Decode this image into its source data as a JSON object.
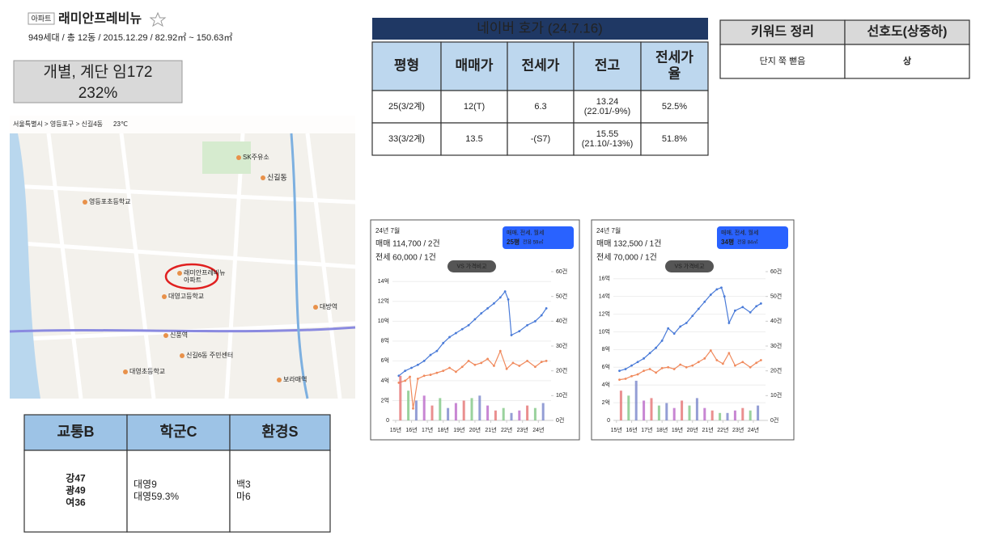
{
  "header": {
    "tag": "아파트",
    "title": "래미안프레비뉴",
    "subtitle": "949세대 / 총 12동 / 2015.12.29 / 82.92㎡ ~ 150.63㎡"
  },
  "note": [
    "개별, 계단 임172",
    "232%"
  ],
  "naver": {
    "title": "네이버 호가 (24.7.16)",
    "headers": [
      [
        "평형"
      ],
      [
        "매매가"
      ],
      [
        "전세가"
      ],
      [
        "전고"
      ],
      [
        "전세가",
        "율"
      ]
    ],
    "rows": [
      [
        [
          "25(3/2계)"
        ],
        [
          "12(T)"
        ],
        [
          "6.3"
        ],
        [
          "13.24",
          "(22.01/-9%)"
        ],
        [
          "52.5%"
        ]
      ],
      [
        [
          "33(3/2계)"
        ],
        [
          "13.5"
        ],
        [
          "-(S7)"
        ],
        [
          "15.55",
          "(21.10/-13%)"
        ],
        [
          "51.8%"
        ]
      ]
    ]
  },
  "keywords": {
    "headers": [
      "키워드 정리",
      "선호도(상중하)"
    ],
    "rows": [
      [
        "단지 쭉 뻗음",
        "상"
      ]
    ]
  },
  "scores": {
    "headers": [
      "교통B",
      "학군C",
      "환경S"
    ],
    "cells": [
      [
        "강47",
        "광49",
        "여36"
      ],
      [
        "대영9",
        "대영59.3%"
      ],
      [
        "백3",
        "마6"
      ]
    ]
  },
  "map": {
    "labels": [
      "서울특별시 > 영등포구 > 신길4동",
      "23℃",
      "래미안프레비뉴",
      "아파트",
      "대영고등학교",
      "대영초등학교",
      "신길동",
      "신풍역",
      "보라매역",
      "대방역",
      "SK주유소",
      "영등포초등학교",
      "신길6동 주민센터"
    ]
  },
  "charts": [
    {
      "type": "line",
      "month": "24년 7월",
      "sale": "매매 114,700 / 2건",
      "lease": "전세 60,000 / 1건",
      "badge": "매매, 전세, 월세",
      "size": "25평",
      "area": "전용 59㎡",
      "compare": "VS 가격비교",
      "xlim": [
        2014.8,
        2024.8
      ],
      "xticks": [
        {
          "value": 2015,
          "label": "15년"
        },
        {
          "value": 2016,
          "label": "16년"
        },
        {
          "value": 2017,
          "label": "17년"
        },
        {
          "value": 2018,
          "label": "18년"
        },
        {
          "value": 2019,
          "label": "19년"
        },
        {
          "value": 2020,
          "label": "20년"
        },
        {
          "value": 2021,
          "label": "21년"
        },
        {
          "value": 2022,
          "label": "22년"
        },
        {
          "value": 2023,
          "label": "23년"
        },
        {
          "value": 2024,
          "label": "24년"
        }
      ],
      "ylim": [
        0,
        15
      ],
      "yticks": [
        0,
        {
          "value": 2,
          "label": "2억"
        },
        {
          "value": 4,
          "label": "4억"
        },
        {
          "value": 6,
          "label": "6억"
        },
        {
          "value": 8,
          "label": "8억"
        },
        {
          "value": 10,
          "label": "10억"
        },
        {
          "value": 12,
          "label": "12억"
        },
        {
          "value": 14,
          "label": "14억"
        }
      ],
      "y2lim": [
        0,
        60
      ],
      "y2ticks": [
        {
          "value": 0,
          "label": "0건"
        },
        {
          "value": 10,
          "label": "10건"
        },
        {
          "value": 20,
          "label": "20건"
        },
        {
          "value": 30,
          "label": "30건"
        },
        {
          "value": 40,
          "label": "40건"
        },
        {
          "value": 50,
          "label": "50건"
        },
        {
          "value": 60,
          "label": "60건"
        }
      ],
      "series": [
        {
          "color": "#4a7bd8",
          "x": [
            2015.2,
            2015.6,
            2016.0,
            2016.4,
            2016.8,
            2017.2,
            2017.6,
            2018.0,
            2018.4,
            2018.8,
            2019.2,
            2019.6,
            2020.0,
            2020.4,
            2020.8,
            2021.2,
            2021.6,
            2021.9,
            2022.1,
            2022.3,
            2022.8,
            2023.3,
            2023.8,
            2024.2,
            2024.5
          ],
          "values": [
            4.5,
            5.0,
            5.3,
            5.6,
            6.0,
            6.6,
            7.0,
            7.8,
            8.4,
            8.8,
            9.2,
            9.6,
            10.2,
            10.8,
            11.3,
            11.8,
            12.4,
            13.0,
            12.2,
            8.6,
            9.0,
            9.6,
            10.0,
            10.6,
            11.3
          ]
        },
        {
          "color": "#f08a5d",
          "x": [
            2015.2,
            2015.6,
            2015.9,
            2016.1,
            2016.4,
            2016.8,
            2017.2,
            2017.6,
            2018.0,
            2018.4,
            2018.8,
            2019.2,
            2019.6,
            2020.0,
            2020.4,
            2020.8,
            2021.2,
            2021.6,
            2022.0,
            2022.4,
            2022.8,
            2023.3,
            2023.8,
            2024.2,
            2024.5
          ],
          "values": [
            3.8,
            4.0,
            4.4,
            1.2,
            4.2,
            4.5,
            4.6,
            4.8,
            5.0,
            5.3,
            4.9,
            5.4,
            6.0,
            5.6,
            5.8,
            6.2,
            5.5,
            7.0,
            5.2,
            5.8,
            5.5,
            6.0,
            5.4,
            5.9,
            6.0
          ]
        },
        {
          "type": "bar",
          "axis": "y2",
          "colors": [
            "#e57373",
            "#81c784",
            "#7986cb",
            "#ba68c8"
          ],
          "x": [
            2015.3,
            2015.8,
            2016.3,
            2016.8,
            2017.3,
            2017.8,
            2018.3,
            2018.8,
            2019.3,
            2019.8,
            2020.3,
            2020.8,
            2021.3,
            2021.8,
            2022.3,
            2022.8,
            2023.3,
            2023.8,
            2024.3
          ],
          "values": [
            18,
            12,
            8,
            10,
            6,
            9,
            5,
            7,
            8,
            9,
            10,
            6,
            4,
            5,
            3,
            4,
            6,
            5,
            7
          ]
        }
      ]
    },
    {
      "type": "line",
      "month": "24년 7월",
      "sale": "매매 132,500 / 1건",
      "lease": "전세 70,000 / 1건",
      "badge": "매매, 전세, 월세",
      "size": "34평",
      "area": "전용 84㎡",
      "compare": "VS 가격비교",
      "xlim": [
        2014.8,
        2024.8
      ],
      "xticks": [
        {
          "value": 2015,
          "label": "15년"
        },
        {
          "value": 2016,
          "label": "16년"
        },
        {
          "value": 2017,
          "label": "17년"
        },
        {
          "value": 2018,
          "label": "18년"
        },
        {
          "value": 2019,
          "label": "19년"
        },
        {
          "value": 2020,
          "label": "20년"
        },
        {
          "value": 2021,
          "label": "21년"
        },
        {
          "value": 2022,
          "label": "22년"
        },
        {
          "value": 2023,
          "label": "23년"
        },
        {
          "value": 2024,
          "label": "24년"
        }
      ],
      "ylim": [
        0,
        16.8
      ],
      "yticks": [
        0,
        {
          "value": 2,
          "label": "2억"
        },
        {
          "value": 4,
          "label": "4억"
        },
        {
          "value": 6,
          "label": "6억"
        },
        {
          "value": 8,
          "label": "8억"
        },
        {
          "value": 10,
          "label": "10억"
        },
        {
          "value": 12,
          "label": "12억"
        },
        {
          "value": 14,
          "label": "14억"
        },
        {
          "value": 16,
          "label": "16억"
        }
      ],
      "y2lim": [
        0,
        60
      ],
      "y2ticks": [
        {
          "value": 0,
          "label": "0건"
        },
        {
          "value": 10,
          "label": "10건"
        },
        {
          "value": 20,
          "label": "20건"
        },
        {
          "value": 30,
          "label": "30건"
        },
        {
          "value": 40,
          "label": "40건"
        },
        {
          "value": 50,
          "label": "50건"
        },
        {
          "value": 60,
          "label": "60건"
        }
      ],
      "series": [
        {
          "color": "#4a7bd8",
          "x": [
            2015.2,
            2015.6,
            2016.0,
            2016.4,
            2016.8,
            2017.2,
            2017.6,
            2018.0,
            2018.4,
            2018.8,
            2019.2,
            2019.6,
            2020.0,
            2020.4,
            2020.8,
            2021.2,
            2021.6,
            2021.9,
            2022.1,
            2022.4,
            2022.8,
            2023.3,
            2023.8,
            2024.2,
            2024.5
          ],
          "values": [
            5.6,
            5.8,
            6.2,
            6.6,
            7.0,
            7.6,
            8.2,
            9.0,
            10.4,
            9.8,
            10.6,
            11.0,
            11.8,
            12.6,
            13.4,
            14.2,
            14.8,
            15.0,
            14.0,
            11.0,
            12.4,
            12.8,
            12.2,
            12.9,
            13.2
          ]
        },
        {
          "color": "#f08a5d",
          "x": [
            2015.2,
            2015.6,
            2016.0,
            2016.4,
            2016.8,
            2017.2,
            2017.6,
            2018.0,
            2018.4,
            2018.8,
            2019.2,
            2019.6,
            2020.0,
            2020.4,
            2020.8,
            2021.2,
            2021.6,
            2022.0,
            2022.4,
            2022.8,
            2023.3,
            2023.8,
            2024.2,
            2024.5
          ],
          "values": [
            4.6,
            4.7,
            5.0,
            5.2,
            5.6,
            5.8,
            5.4,
            5.9,
            6.0,
            5.8,
            6.3,
            6.0,
            6.2,
            6.6,
            7.0,
            7.9,
            6.8,
            6.4,
            7.6,
            6.2,
            6.6,
            6.0,
            6.5,
            6.8
          ]
        },
        {
          "type": "bar",
          "axis": "y2",
          "colors": [
            "#e57373",
            "#81c784",
            "#7986cb",
            "#ba68c8"
          ],
          "x": [
            2015.3,
            2015.8,
            2016.3,
            2016.8,
            2017.3,
            2017.8,
            2018.3,
            2018.8,
            2019.3,
            2019.8,
            2020.3,
            2020.8,
            2021.3,
            2021.8,
            2022.3,
            2022.8,
            2023.3,
            2023.8,
            2024.3
          ],
          "values": [
            12,
            10,
            16,
            8,
            9,
            6,
            7,
            5,
            8,
            6,
            9,
            5,
            4,
            3,
            3,
            4,
            5,
            4,
            6
          ]
        }
      ]
    }
  ]
}
